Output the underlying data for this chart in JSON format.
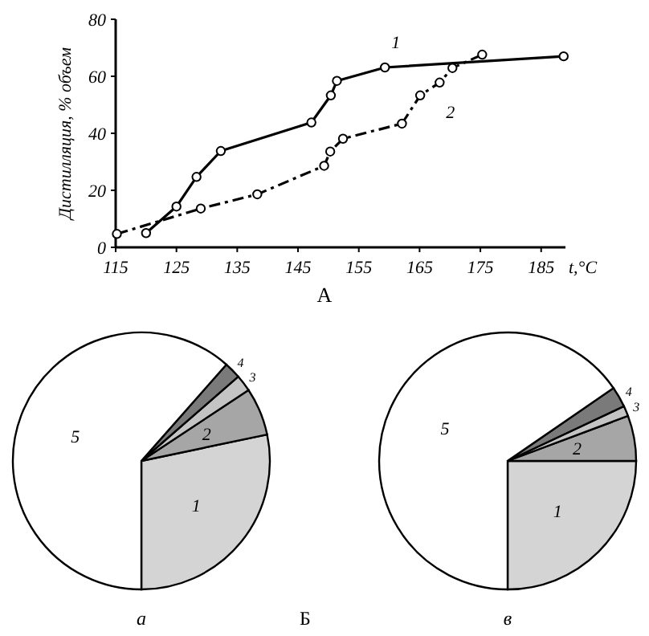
{
  "chart_data": [
    {
      "type": "line",
      "title": "А",
      "xlabel": "t,°C",
      "ylabel": "Дистилляция, % объем",
      "xlim": [
        115,
        189
      ],
      "xticks": [
        115,
        125,
        135,
        145,
        155,
        165,
        175,
        185
      ],
      "ylim": [
        0,
        80
      ],
      "yticks": [
        0,
        20,
        40,
        60,
        80
      ],
      "grid": false,
      "marker": "circle",
      "series": [
        {
          "name": "1",
          "color": "#000000",
          "line_style": "solid",
          "x": [
            120,
            125,
            128.3,
            132.3,
            147.2,
            150.4,
            151.4,
            159.3,
            188.7
          ],
          "values": [
            5,
            14.3,
            24.7,
            33.8,
            43.8,
            53.3,
            58.4,
            63.1,
            67
          ]
        },
        {
          "name": "2",
          "color": "#000000",
          "line_style": "dashed",
          "x": [
            115.2,
            129,
            138.3,
            149.3,
            150.3,
            152.4,
            162.1,
            165.1,
            168.3,
            170.4,
            175.3
          ],
          "values": [
            4.7,
            13.6,
            18.6,
            28.6,
            33.6,
            38.1,
            43.4,
            53.3,
            57.8,
            62.9,
            67.6
          ]
        }
      ]
    },
    {
      "type": "pie",
      "title": "а",
      "annotations": [
        "Б"
      ],
      "categories": [
        "1",
        "2",
        "3",
        "4",
        "5"
      ],
      "values": [
        28.3,
        6,
        2.1,
        2.1,
        61.5
      ],
      "colors": [
        "#d4d4d4",
        "#a6a6a6",
        "#c4c4c4",
        "#7a7a7a",
        "#ffffff"
      ]
    },
    {
      "type": "pie",
      "title": "в",
      "categories": [
        "1",
        "2",
        "3",
        "4",
        "5"
      ],
      "values": [
        25,
        5.7,
        1.3,
        2.6,
        65.4
      ],
      "colors": [
        "#d4d4d4",
        "#a6a6a6",
        "#c4c4c4",
        "#7a7a7a",
        "#ffffff"
      ]
    }
  ]
}
